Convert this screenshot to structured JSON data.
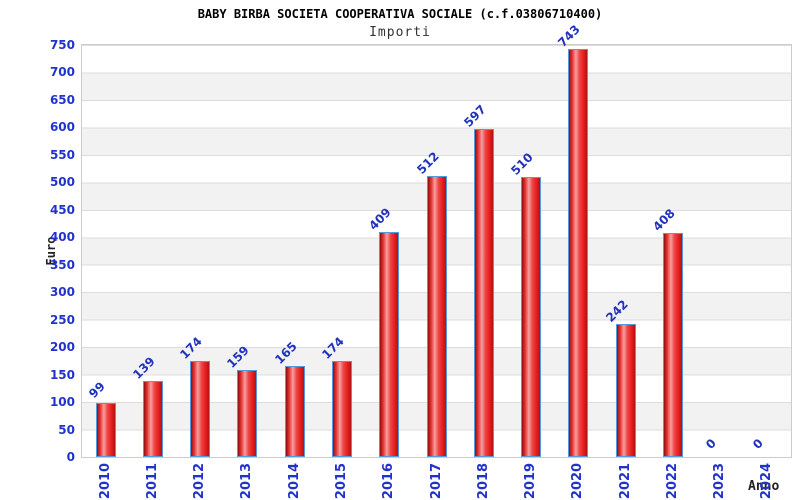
{
  "chart_data": {
    "type": "bar",
    "title": "BABY BIRBA SOCIETA COOPERATIVA SOCIALE (c.f.03806710400)",
    "subtitle": "Importi",
    "xlabel": "Anno",
    "ylabel": "Euro",
    "categories": [
      "2010",
      "2011",
      "2012",
      "2013",
      "2014",
      "2015",
      "2016",
      "2017",
      "2018",
      "2019",
      "2020",
      "2021",
      "2022",
      "2023",
      "2024"
    ],
    "values": [
      99,
      139,
      174,
      159,
      165,
      174,
      409,
      512,
      597,
      510,
      743,
      242,
      408,
      0,
      0
    ],
    "ylim": [
      0,
      750
    ],
    "ytick_step": 50,
    "grid": "horizontal-bands",
    "legend_position": "none",
    "value_labels_rotation_deg": -45,
    "category_labels_rotation_deg": -90,
    "colors": {
      "axis_text": "#2233CC",
      "value_label_text": "#2233BB",
      "bar_main": "#E82222",
      "bar_dark_edge": "#8E1010",
      "bar_light_center": "#F4A0A0",
      "bar_border": "#5599DD",
      "band_light": "#FFFFFF",
      "band_gray": "#F2F2F2",
      "plot_border": "#CCCCCC",
      "title_text": "#000000",
      "subtitle_text": "#333333",
      "axis_title_text": "#222222"
    }
  }
}
